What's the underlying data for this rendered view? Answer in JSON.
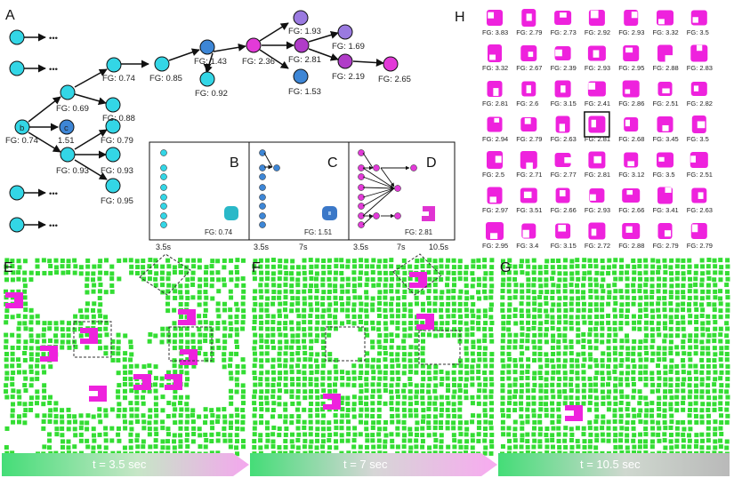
{
  "colors": {
    "cyan": "#33d6e6",
    "blue": "#3d86d6",
    "purple": "#9a7ae0",
    "magenta": "#e23ad8",
    "green": "#33dd33",
    "pink": "#ee22dd"
  },
  "panel_a": {
    "letter": "A",
    "node_b_label": "b",
    "node_c_label": "c",
    "ellipsis": "•••",
    "fg_b": "FG: 0.74",
    "fg_c": "1.51",
    "fg_069": "FG: 0.69",
    "fg_074": "FG: 0.74",
    "fg_088": "FG: 0.88",
    "fg_085": "FG: 0.85",
    "fg_143": "FG: 1.43",
    "fg_092": "FG: 0.92",
    "fg_236": "FG: 2.36",
    "fg_193": "FG: 1.93",
    "fg_281": "FG: 2.81",
    "fg_153": "FG: 1.53",
    "fg_169": "FG: 1.69",
    "fg_219": "FG: 2.19",
    "fg_265": "FG: 2.65",
    "fg_093": "FG: 0.93",
    "fg_079": "FG: 0.79",
    "fg_093b": "FG: 0.93",
    "fg_095": "FG: 0.95"
  },
  "panel_bcd": {
    "letter_b": "B",
    "letter_c": "C",
    "letter_d": "D",
    "fg_b": "FG: 0.74",
    "fg_c": "FG: 1.51",
    "fg_d": "FG: 2.81",
    "tick_35_b": "3.5s",
    "tick_35_c": "3.5s",
    "tick_7_c": "7s",
    "tick_35_d": "3.5s",
    "tick_7_d": "7s",
    "tick_105_d": "10.5s"
  },
  "panel_h": {
    "letter": "H",
    "fg_values": [
      "FG: 3.83",
      "FG: 2.79",
      "FG: 2.73",
      "FG: 2.92",
      "FG: 2.93",
      "FG: 3.32",
      "FG: 3.5",
      "FG: 3.32",
      "FG: 2.67",
      "FG: 2.39",
      "FG: 2.93",
      "FG: 2.95",
      "FG: 2.88",
      "FG: 2.83",
      "FG: 2.81",
      "FG: 2.6",
      "FG: 3.15",
      "FG: 2.41",
      "FG: 2.86",
      "FG: 2.51",
      "FG: 2.82",
      "FG: 2.94",
      "FG: 2.79",
      "FG: 2.63",
      "FG: 2.81",
      "FG: 2.68",
      "FG: 3.45",
      "FG: 3.5",
      "FG: 2.5",
      "FG: 2.71",
      "FG: 2.77",
      "FG: 2.81",
      "FG: 3.12",
      "FG: 3.5",
      "FG: 2.51",
      "FG: 2.97",
      "FG: 3.51",
      "FG: 2.66",
      "FG: 2.93",
      "FG: 2.66",
      "FG: 3.41",
      "FG: 2.63",
      "FG: 2.95",
      "FG: 3.4",
      "FG: 3.15",
      "FG: 2.72",
      "FG: 2.88",
      "FG: 2.79",
      "FG: 2.79"
    ],
    "highlighted_index": 24
  },
  "panel_efg": {
    "letter_e": "E",
    "letter_f": "F",
    "letter_g": "G",
    "time_e": "t = 3.5 sec",
    "time_f": "t = 7 sec",
    "time_g": "t = 10.5 sec"
  }
}
